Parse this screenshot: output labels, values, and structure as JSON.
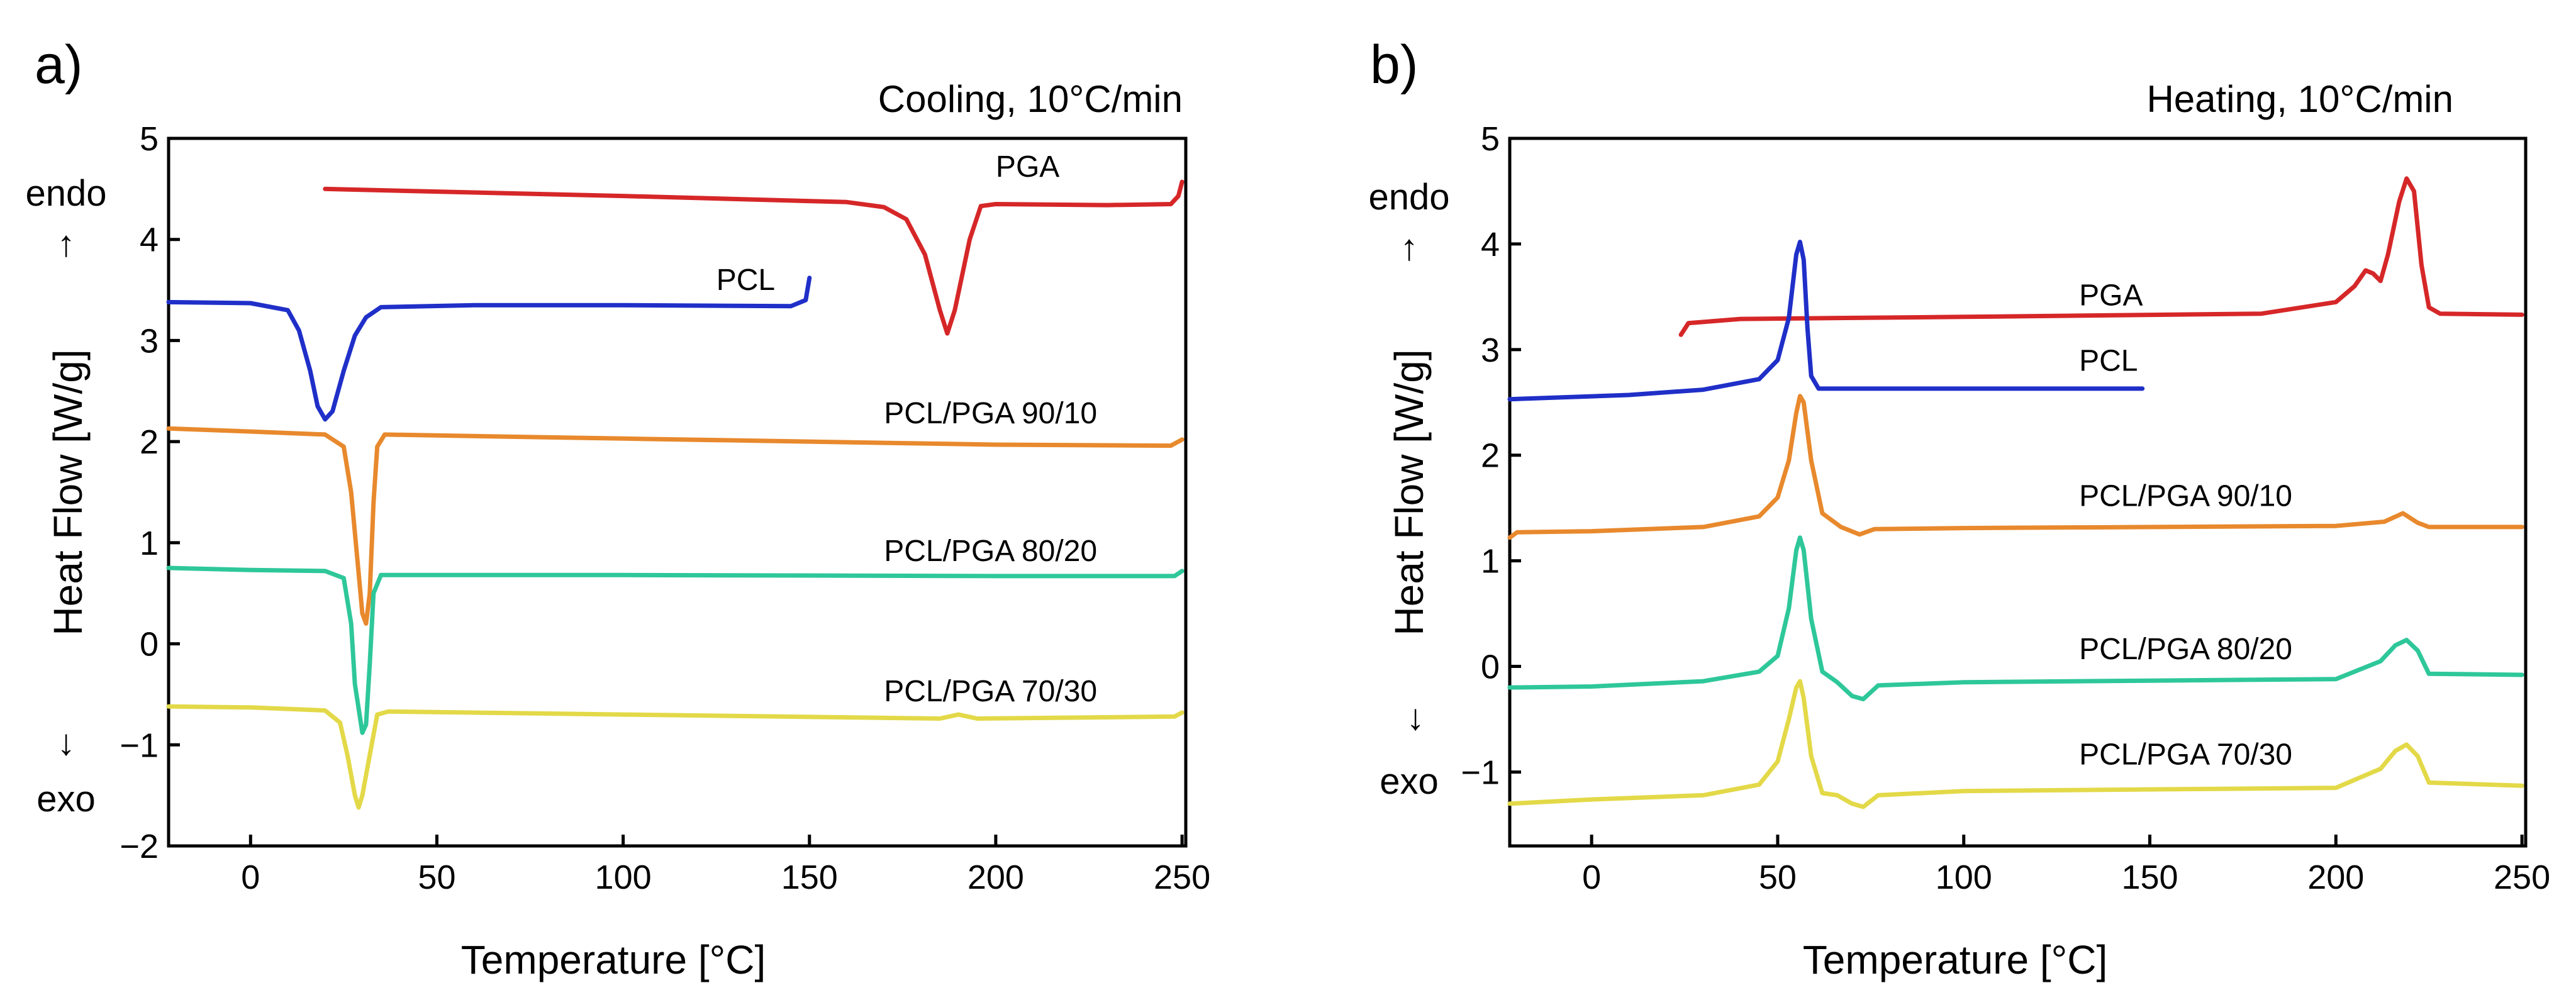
{
  "colors": {
    "PGA": "#d62728",
    "PCL": "#1f2fc8",
    "PCL/PGA 90/10": "#e8892d",
    "PCL/PGA 80/20": "#2ec79a",
    "PCL/PGA 70/30": "#e3d948"
  },
  "chart_data": [
    {
      "type": "line",
      "panel": "a)",
      "condition": "Cooling, 10°C/min",
      "xlabel": "Temperature   [°C]",
      "ylabel": "Heat Flow   [W/g]",
      "endo_label": "endo",
      "exo_label": "exo",
      "up_arrow": "↑",
      "down_arrow": "↓",
      "xlim": [
        -22,
        251
      ],
      "ylim": [
        -2,
        5
      ],
      "xticks": [
        0,
        50,
        100,
        150,
        200,
        250
      ],
      "xtick_labels": [
        "0",
        "50",
        "100",
        "150",
        "200",
        "250"
      ],
      "yticks": [
        -2,
        -1,
        0,
        1,
        2,
        3,
        4,
        5
      ],
      "ytick_labels": [
        "−2",
        "−1",
        "0",
        "1",
        "2",
        "3",
        "4",
        "5"
      ],
      "series": [
        {
          "name": "PGA",
          "label": "PGA",
          "label_at": [
            200,
            4.62
          ],
          "points": [
            [
              20,
              4.5
            ],
            [
              100,
              4.43
            ],
            [
              160,
              4.37
            ],
            [
              170,
              4.32
            ],
            [
              176,
              4.2
            ],
            [
              181,
              3.85
            ],
            [
              185,
              3.3
            ],
            [
              187,
              3.07
            ],
            [
              189,
              3.3
            ],
            [
              193,
              4.0
            ],
            [
              196,
              4.33
            ],
            [
              200,
              4.35
            ],
            [
              230,
              4.34
            ],
            [
              247,
              4.35
            ],
            [
              249,
              4.43
            ],
            [
              250,
              4.57
            ]
          ]
        },
        {
          "name": "PCL",
          "label": "PCL",
          "label_at": [
            125,
            3.5
          ],
          "points": [
            [
              -22,
              3.38
            ],
            [
              0,
              3.37
            ],
            [
              10,
              3.3
            ],
            [
              13,
              3.1
            ],
            [
              16,
              2.7
            ],
            [
              18,
              2.35
            ],
            [
              20,
              2.22
            ],
            [
              22,
              2.3
            ],
            [
              25,
              2.7
            ],
            [
              28,
              3.05
            ],
            [
              31,
              3.23
            ],
            [
              35,
              3.33
            ],
            [
              60,
              3.35
            ],
            [
              100,
              3.35
            ],
            [
              145,
              3.34
            ],
            [
              149,
              3.4
            ],
            [
              150,
              3.62
            ]
          ]
        },
        {
          "name": "PCL/PGA 90/10",
          "label": "PCL/PGA 90/10",
          "label_at": [
            170,
            2.18
          ],
          "points": [
            [
              -22,
              2.13
            ],
            [
              0,
              2.1
            ],
            [
              20,
              2.07
            ],
            [
              25,
              1.95
            ],
            [
              27,
              1.5
            ],
            [
              29,
              0.7
            ],
            [
              30,
              0.3
            ],
            [
              31,
              0.2
            ],
            [
              32,
              0.5
            ],
            [
              33,
              1.4
            ],
            [
              34,
              1.95
            ],
            [
              36,
              2.07
            ],
            [
              100,
              2.03
            ],
            [
              200,
              1.97
            ],
            [
              247,
              1.96
            ],
            [
              250,
              2.02
            ]
          ]
        },
        {
          "name": "PCL/PGA 80/20",
          "label": "PCL/PGA 80/20",
          "label_at": [
            170,
            0.82
          ],
          "points": [
            [
              -22,
              0.75
            ],
            [
              0,
              0.73
            ],
            [
              20,
              0.72
            ],
            [
              25,
              0.65
            ],
            [
              27,
              0.2
            ],
            [
              28,
              -0.4
            ],
            [
              30,
              -0.88
            ],
            [
              31,
              -0.8
            ],
            [
              32,
              -0.2
            ],
            [
              33,
              0.5
            ],
            [
              35,
              0.68
            ],
            [
              100,
              0.68
            ],
            [
              200,
              0.67
            ],
            [
              248,
              0.67
            ],
            [
              250,
              0.72
            ]
          ]
        },
        {
          "name": "PCL/PGA 70/30",
          "label": "PCL/PGA 70/30",
          "label_at": [
            170,
            -0.57
          ],
          "points": [
            [
              -22,
              -0.62
            ],
            [
              0,
              -0.63
            ],
            [
              20,
              -0.66
            ],
            [
              24,
              -0.78
            ],
            [
              26,
              -1.1
            ],
            [
              28,
              -1.5
            ],
            [
              29,
              -1.62
            ],
            [
              30,
              -1.5
            ],
            [
              32,
              -1.1
            ],
            [
              34,
              -0.7
            ],
            [
              37,
              -0.67
            ],
            [
              100,
              -0.7
            ],
            [
              185,
              -0.74
            ],
            [
              190,
              -0.7
            ],
            [
              195,
              -0.74
            ],
            [
              248,
              -0.72
            ],
            [
              250,
              -0.68
            ]
          ]
        }
      ]
    },
    {
      "type": "line",
      "panel": "b)",
      "condition": "Heating, 10°C/min",
      "xlabel": "Temperature   [°C]",
      "ylabel": "Heat Flow   [W/g]",
      "endo_label": "endo",
      "exo_label": "exo",
      "up_arrow": "↑",
      "down_arrow": "↓",
      "xlim": [
        -22,
        251
      ],
      "ylim": [
        -1.7,
        5
      ],
      "xticks": [
        0,
        50,
        100,
        150,
        200,
        250
      ],
      "xtick_labels": [
        "0",
        "50",
        "100",
        "150",
        "200",
        "250"
      ],
      "yticks": [
        -1,
        0,
        1,
        2,
        3,
        4,
        5
      ],
      "ytick_labels": [
        "−1",
        "0",
        "1",
        "2",
        "3",
        "4",
        "5"
      ],
      "series": [
        {
          "name": "PGA",
          "label": "PGA",
          "label_at": [
            131,
            3.42
          ],
          "points": [
            [
              24,
              3.14
            ],
            [
              26,
              3.25
            ],
            [
              40,
              3.29
            ],
            [
              100,
              3.31
            ],
            [
              180,
              3.34
            ],
            [
              200,
              3.45
            ],
            [
              205,
              3.6
            ],
            [
              208,
              3.75
            ],
            [
              210,
              3.72
            ],
            [
              212,
              3.65
            ],
            [
              214,
              3.9
            ],
            [
              217,
              4.4
            ],
            [
              219,
              4.62
            ],
            [
              221,
              4.5
            ],
            [
              223,
              3.8
            ],
            [
              225,
              3.4
            ],
            [
              228,
              3.34
            ],
            [
              250,
              3.33
            ]
          ]
        },
        {
          "name": "PCL",
          "label": "PCL",
          "label_at": [
            131,
            2.8
          ],
          "points": [
            [
              -22,
              2.53
            ],
            [
              10,
              2.57
            ],
            [
              30,
              2.62
            ],
            [
              45,
              2.72
            ],
            [
              50,
              2.9
            ],
            [
              53,
              3.3
            ],
            [
              55,
              3.9
            ],
            [
              56,
              4.02
            ],
            [
              57,
              3.85
            ],
            [
              58,
              3.2
            ],
            [
              59,
              2.75
            ],
            [
              61,
              2.63
            ],
            [
              100,
              2.63
            ],
            [
              148,
              2.63
            ]
          ]
        },
        {
          "name": "PCL/PGA 90/10",
          "label": "PCL/PGA 90/10",
          "label_at": [
            131,
            1.52
          ],
          "points": [
            [
              -22,
              1.22
            ],
            [
              -20,
              1.27
            ],
            [
              0,
              1.28
            ],
            [
              30,
              1.32
            ],
            [
              45,
              1.42
            ],
            [
              50,
              1.6
            ],
            [
              53,
              1.95
            ],
            [
              55,
              2.4
            ],
            [
              56,
              2.56
            ],
            [
              57,
              2.5
            ],
            [
              59,
              1.95
            ],
            [
              62,
              1.45
            ],
            [
              67,
              1.32
            ],
            [
              72,
              1.25
            ],
            [
              76,
              1.3
            ],
            [
              100,
              1.31
            ],
            [
              200,
              1.33
            ],
            [
              213,
              1.37
            ],
            [
              218,
              1.45
            ],
            [
              222,
              1.36
            ],
            [
              225,
              1.32
            ],
            [
              250,
              1.32
            ]
          ]
        },
        {
          "name": "PCL/PGA 80/20",
          "label": "PCL/PGA 80/20",
          "label_at": [
            131,
            0.07
          ],
          "points": [
            [
              -22,
              -0.2
            ],
            [
              0,
              -0.19
            ],
            [
              30,
              -0.14
            ],
            [
              45,
              -0.05
            ],
            [
              50,
              0.1
            ],
            [
              53,
              0.55
            ],
            [
              55,
              1.1
            ],
            [
              56,
              1.22
            ],
            [
              57,
              1.1
            ],
            [
              59,
              0.45
            ],
            [
              62,
              -0.05
            ],
            [
              66,
              -0.15
            ],
            [
              70,
              -0.28
            ],
            [
              73,
              -0.31
            ],
            [
              77,
              -0.18
            ],
            [
              100,
              -0.15
            ],
            [
              200,
              -0.12
            ],
            [
              212,
              0.05
            ],
            [
              216,
              0.2
            ],
            [
              219,
              0.25
            ],
            [
              222,
              0.15
            ],
            [
              225,
              -0.07
            ],
            [
              250,
              -0.08
            ]
          ]
        },
        {
          "name": "PCL/PGA 70/30",
          "label": "PCL/PGA 70/30",
          "label_at": [
            131,
            -0.93
          ],
          "points": [
            [
              -22,
              -1.3
            ],
            [
              0,
              -1.26
            ],
            [
              30,
              -1.22
            ],
            [
              45,
              -1.12
            ],
            [
              50,
              -0.9
            ],
            [
              53,
              -0.5
            ],
            [
              55,
              -0.2
            ],
            [
              56,
              -0.14
            ],
            [
              57,
              -0.3
            ],
            [
              59,
              -0.85
            ],
            [
              62,
              -1.2
            ],
            [
              66,
              -1.22
            ],
            [
              70,
              -1.3
            ],
            [
              73,
              -1.33
            ],
            [
              77,
              -1.22
            ],
            [
              100,
              -1.18
            ],
            [
              200,
              -1.15
            ],
            [
              212,
              -0.97
            ],
            [
              216,
              -0.8
            ],
            [
              219,
              -0.74
            ],
            [
              222,
              -0.85
            ],
            [
              225,
              -1.1
            ],
            [
              250,
              -1.13
            ]
          ]
        }
      ]
    }
  ]
}
